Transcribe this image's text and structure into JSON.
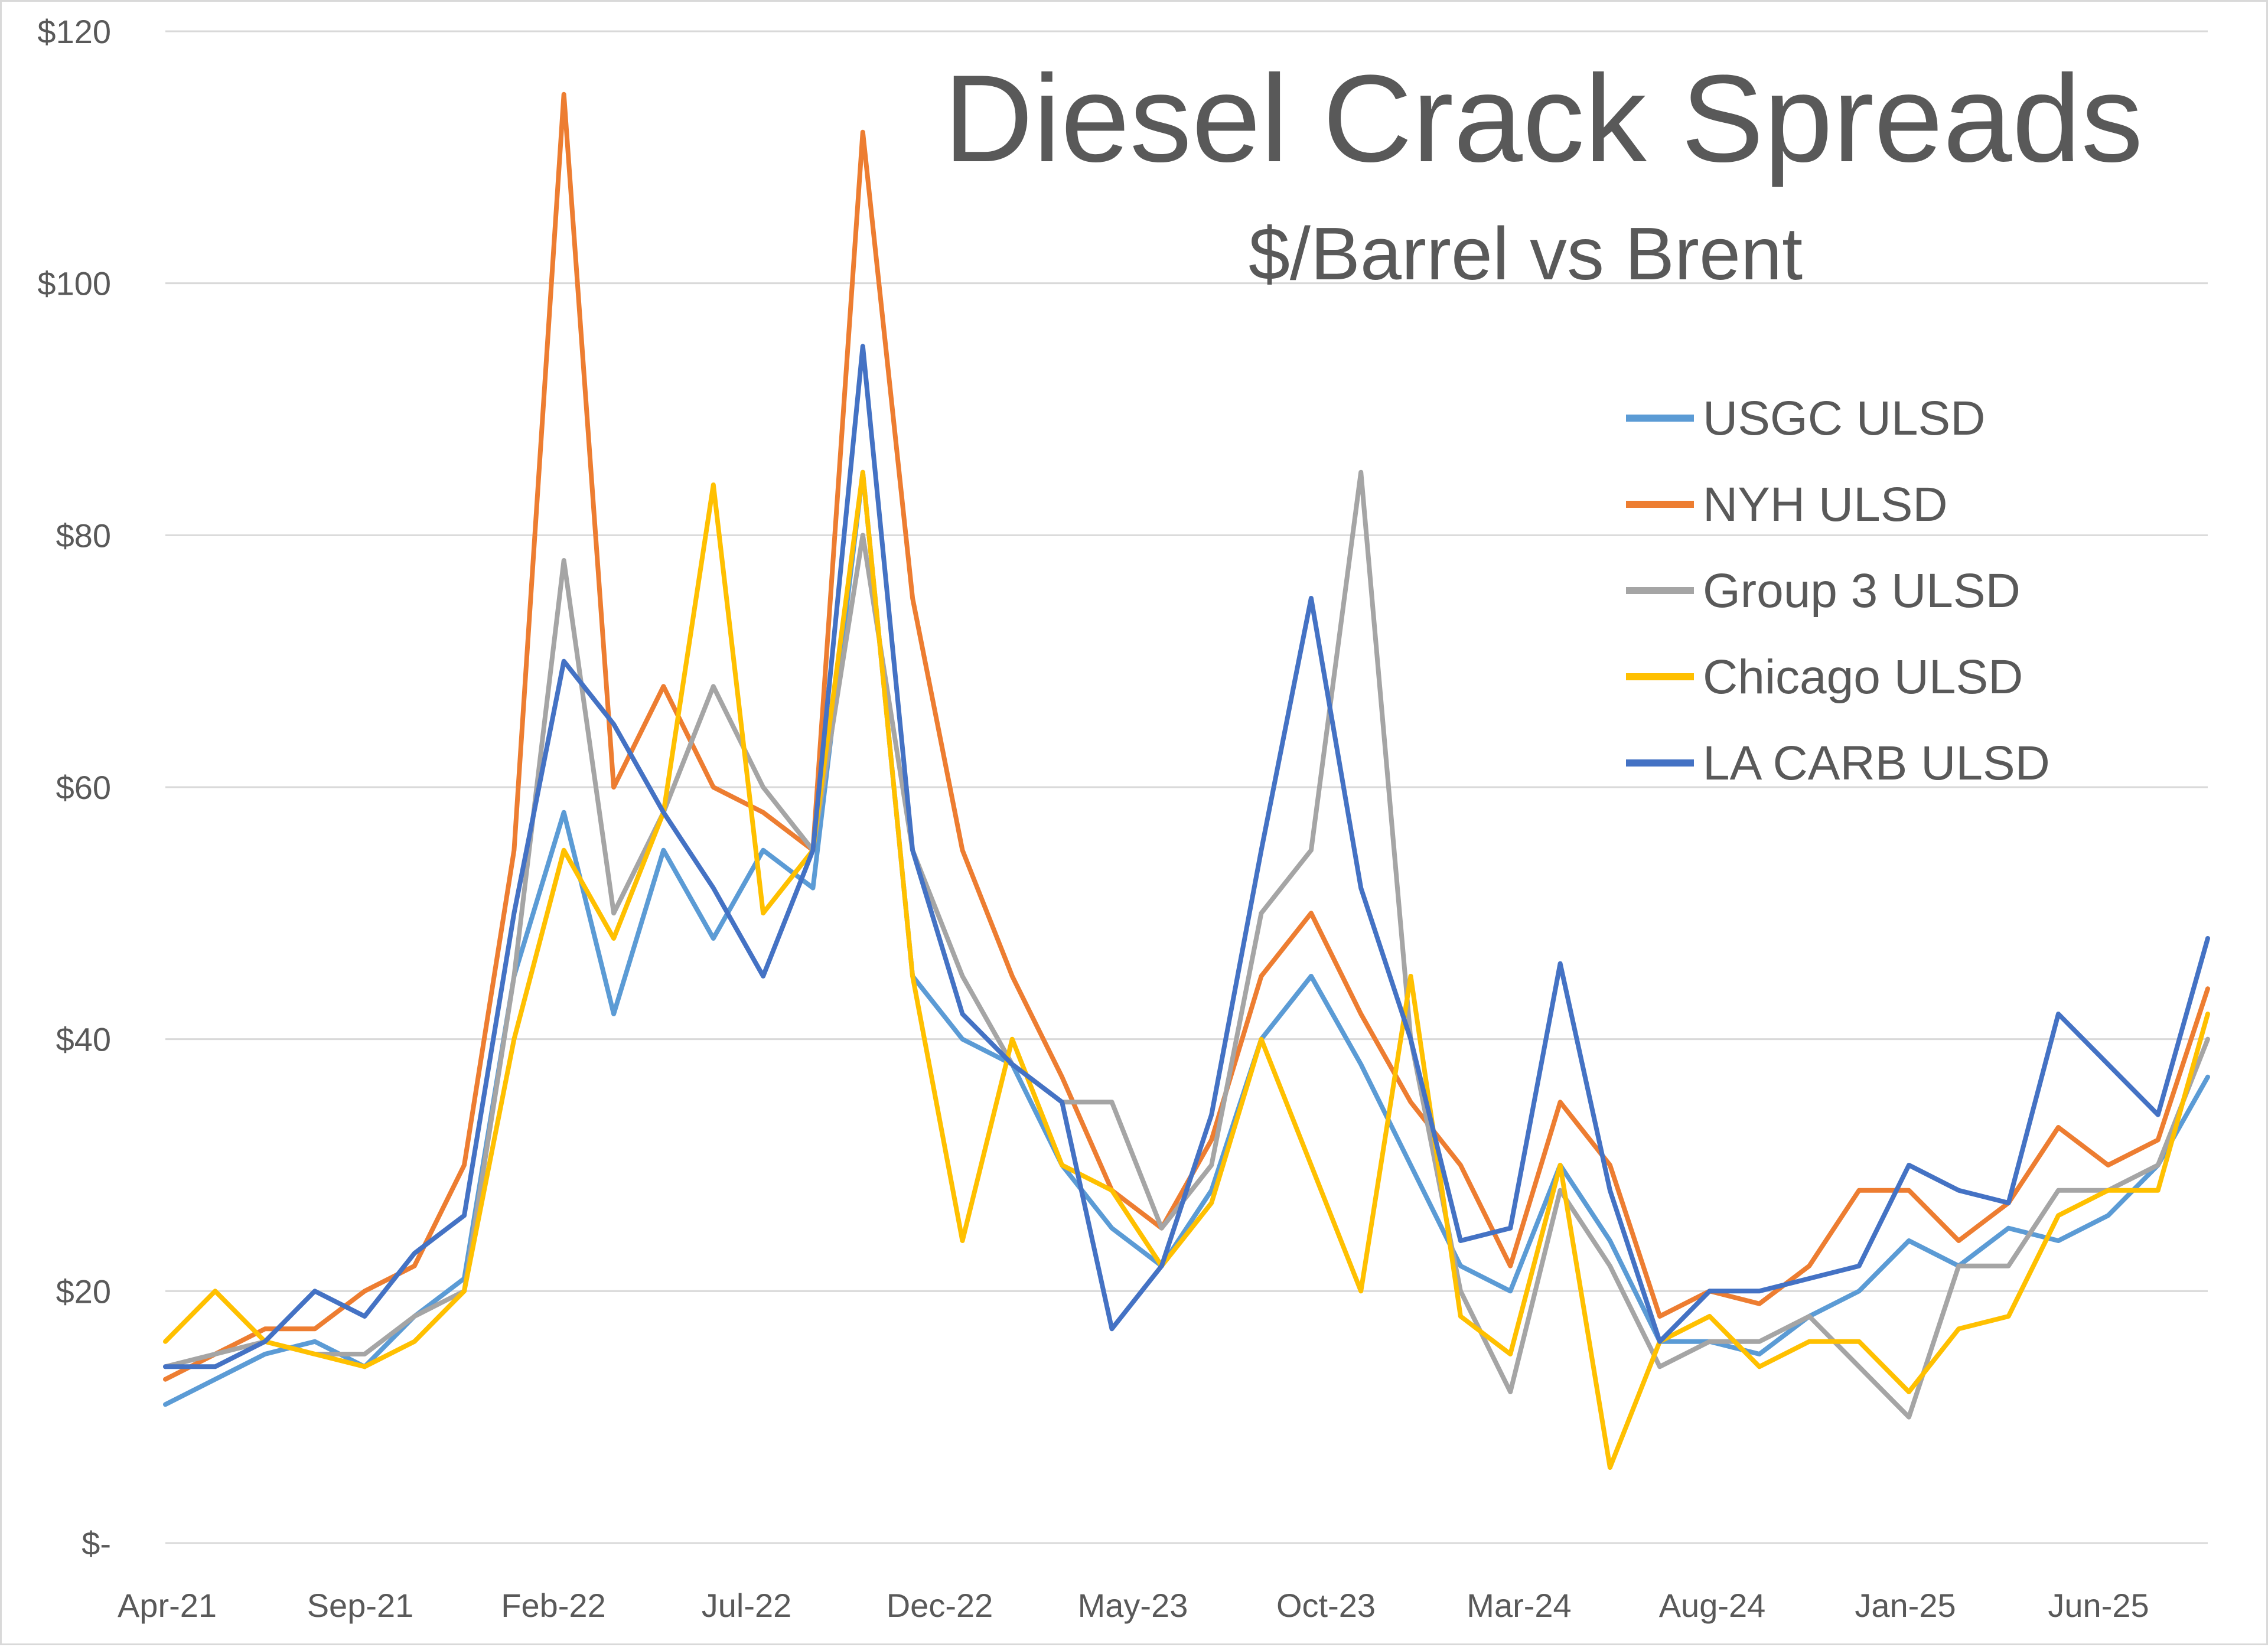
{
  "chart_data": {
    "type": "line",
    "title": "Diesel Crack Spreads",
    "subtitle": "$/Barrel vs Brent",
    "xlabel": "",
    "ylabel": "",
    "y_ticks": [
      "$-",
      "$20",
      "$40",
      "$60",
      "$80",
      "$100",
      "$120"
    ],
    "ylim": [
      0,
      120
    ],
    "x_tick_labels": [
      "Apr-21",
      "Sep-21",
      "Feb-22",
      "Jul-22",
      "Dec-22",
      "May-23",
      "Oct-23",
      "Mar-24",
      "Aug-24",
      "Jan-25",
      "Jun-25"
    ],
    "grid": "horizontal",
    "legend_position": "right",
    "x": [
      "Apr-21",
      "Jun-21",
      "Aug-21",
      "Sep-21",
      "Nov-21",
      "Jan-22",
      "Feb-22",
      "Mar-22",
      "Apr-22",
      "May-22",
      "Jun-22",
      "Jul-22",
      "Aug-22",
      "Sep-22",
      "Oct-22",
      "Nov-22",
      "Dec-22",
      "Jan-23",
      "Mar-23",
      "Apr-23",
      "May-23",
      "Jul-23",
      "Aug-23",
      "Sep-23",
      "Oct-23",
      "Nov-23",
      "Jan-24",
      "Feb-24",
      "Mar-24",
      "Apr-24",
      "Jun-24",
      "Aug-24",
      "Sep-24",
      "Nov-24",
      "Jan-25",
      "Feb-25",
      "Apr-25",
      "Jun-25",
      "Aug-25",
      "Sep-25",
      "Oct-25",
      "Nov-25"
    ],
    "series": [
      {
        "name": "USGC ULSD",
        "color": "#5b9bd5",
        "values": [
          11,
          13,
          15,
          16,
          14,
          18,
          21,
          45,
          58,
          42,
          55,
          48,
          55,
          52,
          85,
          45,
          40,
          38,
          30,
          25,
          22,
          28,
          40,
          45,
          38,
          30,
          22,
          20,
          30,
          24,
          16,
          16,
          15,
          18,
          20,
          24,
          22,
          25,
          24,
          26,
          30,
          37
        ]
      },
      {
        "name": "NYH ULSD",
        "color": "#ed7d31",
        "values": [
          13,
          15,
          17,
          17,
          20,
          22,
          30,
          55,
          115,
          60,
          68,
          60,
          58,
          55,
          112,
          75,
          55,
          45,
          37,
          28,
          25,
          32,
          45,
          50,
          42,
          35,
          30,
          22,
          35,
          30,
          18,
          20,
          19,
          22,
          28,
          28,
          24,
          27,
          33,
          30,
          32,
          44
        ]
      },
      {
        "name": "Group 3 ULSD",
        "color": "#a5a5a5",
        "values": [
          14,
          15,
          16,
          15,
          15,
          18,
          20,
          45,
          78,
          50,
          58,
          68,
          60,
          55,
          80,
          55,
          45,
          38,
          35,
          35,
          25,
          30,
          50,
          55,
          85,
          40,
          20,
          12,
          28,
          22,
          14,
          16,
          16,
          18,
          14,
          10,
          22,
          22,
          28,
          28,
          30,
          40
        ]
      },
      {
        "name": "Chicago ULSD",
        "color": "#ffc000",
        "values": [
          16,
          20,
          16,
          15,
          14,
          16,
          20,
          40,
          55,
          48,
          58,
          84,
          50,
          55,
          85,
          45,
          24,
          40,
          30,
          28,
          22,
          27,
          40,
          30,
          20,
          45,
          18,
          15,
          30,
          6,
          16,
          18,
          14,
          16,
          16,
          12,
          17,
          18,
          26,
          28,
          28,
          42
        ]
      },
      {
        "name": "LA CARB ULSD",
        "color": "#4472c4",
        "values": [
          14,
          14,
          16,
          20,
          18,
          23,
          26,
          50,
          70,
          65,
          58,
          52,
          45,
          55,
          95,
          55,
          42,
          38,
          35,
          17,
          22,
          34,
          55,
          75,
          52,
          40,
          24,
          25,
          46,
          28,
          16,
          20,
          20,
          21,
          22,
          30,
          28,
          27,
          42,
          38,
          34,
          48
        ]
      }
    ]
  }
}
